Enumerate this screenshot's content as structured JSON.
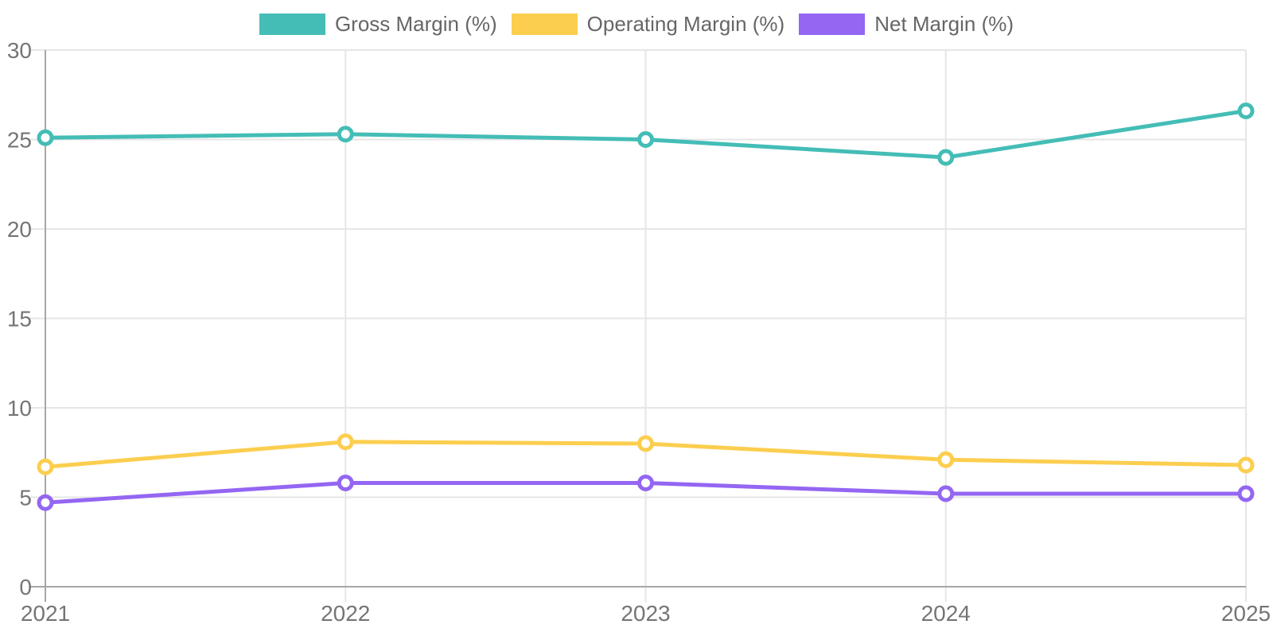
{
  "chart_data": {
    "type": "line",
    "categories": [
      "2021",
      "2022",
      "2023",
      "2024",
      "2025"
    ],
    "series": [
      {
        "name": "Gross Margin (%)",
        "color": "#44BDB6",
        "values": [
          25.1,
          25.3,
          25.0,
          24.0,
          26.6
        ]
      },
      {
        "name": "Operating Margin (%)",
        "color": "#FCCE4F",
        "values": [
          6.7,
          8.1,
          8.0,
          7.1,
          6.8
        ]
      },
      {
        "name": "Net Margin (%)",
        "color": "#9466F2",
        "values": [
          4.7,
          5.8,
          5.8,
          5.2,
          5.2
        ]
      }
    ],
    "xlabel": "",
    "ylabel": "",
    "ylim": [
      0,
      30
    ],
    "y_ticks": [
      0,
      5,
      10,
      15,
      20,
      25,
      30
    ],
    "grid": true,
    "legend_position": "top",
    "marker": "open-circle"
  },
  "style": {
    "background": "#FFFFFF",
    "grid_color": "#E6E6E6",
    "axis_color": "#A6A6A6",
    "tick_label_color": "#757575",
    "legend_text_color": "#666666",
    "point_fill": "#FFFFFF"
  }
}
